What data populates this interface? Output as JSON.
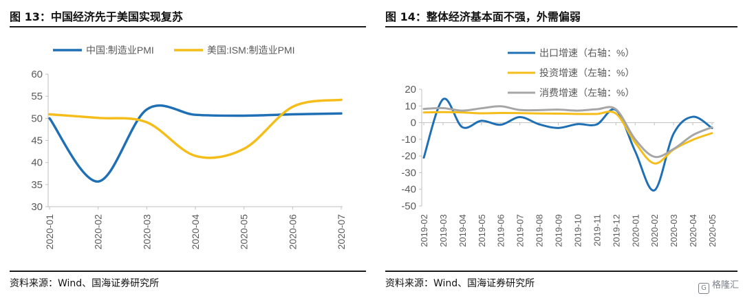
{
  "left_panel": {
    "title": "图 13：中国经济先于美国实现复苏",
    "source": "资料来源：Wind、国海证券研究所"
  },
  "right_panel": {
    "title": "图 14：整体经济基本面不强，外需偏弱",
    "source": "资料来源：Wind、国海证券研究所"
  },
  "watermark": {
    "text": "格隆汇",
    "icon": "gelonghui-logo-icon"
  },
  "chart_data": [
    {
      "type": "line",
      "title": "",
      "xlabel": "",
      "ylabel": "",
      "ylim": [
        30,
        60
      ],
      "yticks": [
        30,
        35,
        40,
        45,
        50,
        55,
        60
      ],
      "categories": [
        "2020-01",
        "2020-02",
        "2020-03",
        "2020-04",
        "2020-05",
        "2020-06",
        "2020-07"
      ],
      "legend_position": "top",
      "grid": false,
      "series": [
        {
          "name": "中国:制造业PMI",
          "color": "#1f6fb5",
          "values": [
            50.0,
            35.7,
            52.0,
            50.8,
            50.6,
            50.9,
            51.1
          ]
        },
        {
          "name": "美国:ISM:制造业PMI",
          "color": "#f5bd19",
          "values": [
            50.9,
            50.1,
            49.1,
            41.5,
            43.1,
            52.6,
            54.2
          ]
        }
      ]
    },
    {
      "type": "line",
      "title": "",
      "xlabel": "",
      "ylabel": "",
      "ylim": [
        -50,
        20
      ],
      "yticks": [
        -50,
        -40,
        -30,
        -20,
        -10,
        0,
        10,
        20
      ],
      "categories": [
        "2019-02",
        "2019-03",
        "2019-04",
        "2019-05",
        "2019-06",
        "2019-07",
        "2019-08",
        "2019-09",
        "2019-10",
        "2019-11",
        "2019-12",
        "2020-01",
        "2020-02",
        "2020-03",
        "2020-04",
        "2020-05"
      ],
      "legend_position": "top-right",
      "grid": false,
      "series": [
        {
          "name": "出口增速（右轴：%）",
          "color": "#1f6fb5",
          "values": [
            -21,
            14,
            -2.7,
            1.1,
            -1.3,
            3.3,
            -1,
            -3.2,
            -0.9,
            -1.1,
            7.6,
            -17.2,
            -40.6,
            -6.6,
            3.5,
            -3.3
          ]
        },
        {
          "name": "投资增速（左轴：%）",
          "color": "#f5bd19",
          "values": [
            6.1,
            6.3,
            6.1,
            5.6,
            5.8,
            5.7,
            5.5,
            5.4,
            5.2,
            5.2,
            5.4,
            -12,
            -24.5,
            -16.1,
            -10.3,
            -6.3
          ]
        },
        {
          "name": "消费增速（左轴：%）",
          "color": "#a6a6a6",
          "values": [
            8.2,
            8.7,
            7.2,
            8.6,
            9.8,
            7.6,
            7.5,
            7.8,
            7.2,
            8,
            8,
            -10,
            -20.5,
            -15.8,
            -7.5,
            -2.8
          ]
        }
      ]
    }
  ]
}
